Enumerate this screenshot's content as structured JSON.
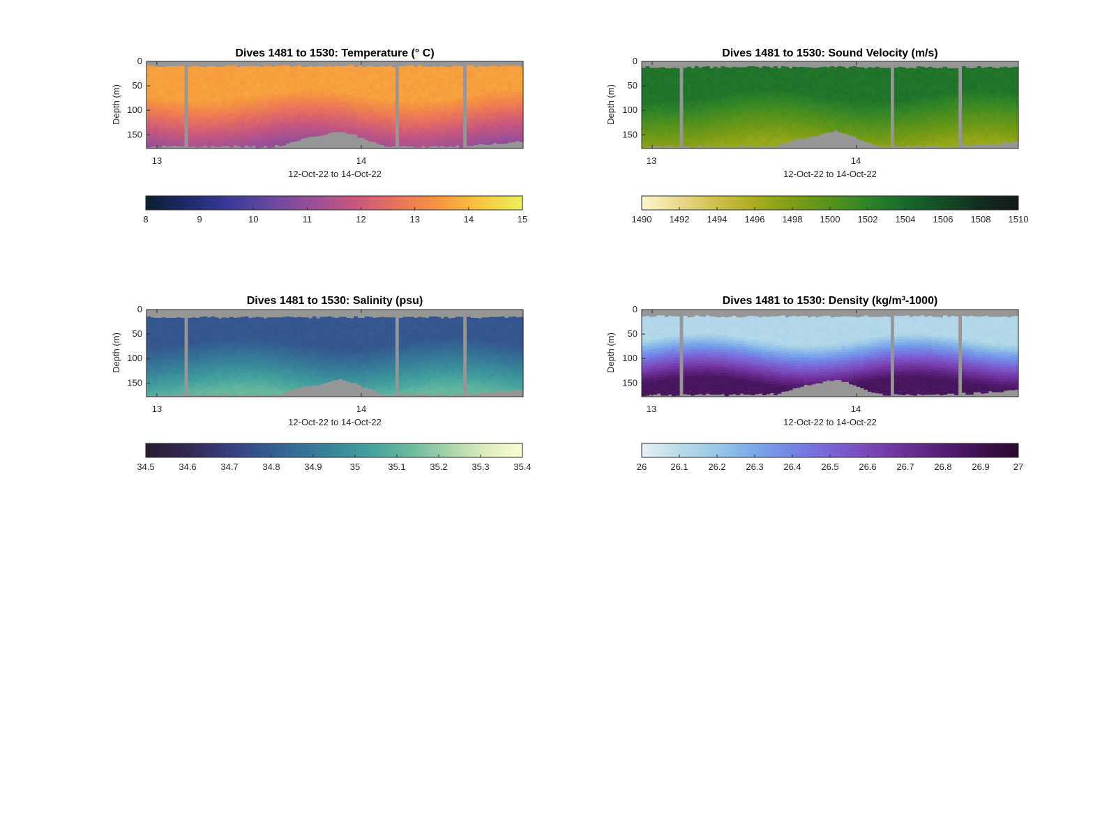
{
  "chart_data": [
    {
      "type": "heatmap",
      "panel": "temperature",
      "title": "Dives 1481 to 1530: Temperature (° C)",
      "xlabel": "12-Oct-22 to 14-Oct-22",
      "ylabel": "Depth (m)",
      "x_ticks": [
        "13",
        "14"
      ],
      "y_ticks": [
        0,
        50,
        100,
        150
      ],
      "xlim": [
        "12-Oct-22 20:00",
        "14-Oct-22 16:00"
      ],
      "ylim": [
        0,
        178
      ],
      "colorbar": {
        "ticks": [
          8,
          9,
          10,
          11,
          12,
          13,
          14,
          15
        ],
        "range": [
          8,
          15
        ],
        "colormap": [
          "#0a1f2e",
          "#1f2a6a",
          "#3b3a9a",
          "#6a48a0",
          "#9a4f96",
          "#c8577e",
          "#e8735c",
          "#f7963f",
          "#f7c640",
          "#eaf25a"
        ]
      },
      "field": {
        "surface": 13.6,
        "deep": 11.0,
        "gradient_start": 70,
        "gradient_end": 175
      },
      "missing_color": "#969696"
    },
    {
      "type": "heatmap",
      "panel": "sound_velocity",
      "title": "Dives 1481 to 1530: Sound Velocity (m/s)",
      "xlabel": "12-Oct-22 to 14-Oct-22",
      "ylabel": "Depth (m)",
      "x_ticks": [
        "13",
        "14"
      ],
      "y_ticks": [
        0,
        50,
        100,
        150
      ],
      "xlim": [
        "12-Oct-22 20:00",
        "14-Oct-22 16:00"
      ],
      "ylim": [
        0,
        178
      ],
      "colorbar": {
        "ticks": [
          1490,
          1492,
          1494,
          1496,
          1498,
          1500,
          1502,
          1504,
          1506,
          1508,
          1510
        ],
        "range": [
          1490,
          1510
        ],
        "colormap": [
          "#fbf6cf",
          "#ead98c",
          "#cfbf4a",
          "#a8ad1e",
          "#7e9e14",
          "#56921c",
          "#2f8427",
          "#17692c",
          "#144c26",
          "#122d1e",
          "#15191a"
        ]
      },
      "field": {
        "surface": 1503.2,
        "deep": 1496.8,
        "gradient_start": 70,
        "gradient_end": 175
      },
      "missing_color": "#969696"
    },
    {
      "type": "heatmap",
      "panel": "salinity",
      "title": "Dives 1481 to 1530: Salinity (psu)",
      "xlabel": "12-Oct-22 to 14-Oct-22",
      "ylabel": "Depth (m)",
      "x_ticks": [
        "13",
        "14"
      ],
      "y_ticks": [
        0,
        50,
        100,
        150
      ],
      "xlim": [
        "12-Oct-22 20:00",
        "14-Oct-22 16:00"
      ],
      "ylim": [
        0,
        178
      ],
      "colorbar": {
        "ticks": [
          34.5,
          34.6,
          34.7,
          34.8,
          34.9,
          35,
          35.1,
          35.2,
          35.3,
          35.4
        ],
        "range": [
          34.5,
          35.4
        ],
        "colormap": [
          "#2a1a2e",
          "#33264f",
          "#363a78",
          "#34548e",
          "#346e95",
          "#38879a",
          "#44a29e",
          "#6ab99e",
          "#a4d3a7",
          "#ddedbc",
          "#fdfbd3"
        ]
      },
      "field": {
        "surface": 34.78,
        "deep": 35.12,
        "gradient_start": 70,
        "gradient_end": 175
      },
      "missing_color": "#969696"
    },
    {
      "type": "heatmap",
      "panel": "density",
      "title": "Dives 1481 to 1530: Density (kg/m³-1000)",
      "xlabel": "12-Oct-22 to 14-Oct-22",
      "ylabel": "Depth (m)",
      "x_ticks": [
        "13",
        "14"
      ],
      "y_ticks": [
        0,
        50,
        100,
        150
      ],
      "xlim": [
        "12-Oct-22 20:00",
        "14-Oct-22 16:00"
      ],
      "ylim": [
        0,
        178
      ],
      "colorbar": {
        "ticks": [
          26,
          26.1,
          26.2,
          26.3,
          26.4,
          26.5,
          26.6,
          26.7,
          26.8,
          26.9,
          27
        ],
        "range": [
          26,
          27
        ],
        "colormap": [
          "#e6f2f4",
          "#b9dbe9",
          "#98c8e8",
          "#7aa8ea",
          "#7485e6",
          "#7a63d6",
          "#7a48b8",
          "#6d2f98",
          "#571d74",
          "#3e1250",
          "#2a0a30"
        ]
      },
      "field": {
        "surface": 26.12,
        "deep": 26.86,
        "gradient_start": 60,
        "gradient_end": 150
      },
      "missing_color": "#969696"
    }
  ],
  "profiles": {
    "columns": 100,
    "gap_dives": [
      10,
      66,
      84
    ],
    "surface_missing_depth": [
      8,
      10,
      14,
      12
    ],
    "bottom_depth": [
      176,
      176,
      175,
      176,
      174,
      176,
      175,
      173,
      176,
      175,
      176,
      175,
      174,
      176,
      175,
      173,
      176,
      174,
      175,
      176,
      175,
      173,
      176,
      174,
      175,
      176,
      173,
      175,
      174,
      176,
      175,
      174,
      176,
      175,
      173,
      174,
      171,
      168,
      166,
      164,
      162,
      160,
      158,
      156,
      155,
      154,
      152,
      150,
      148,
      146,
      145,
      144,
      146,
      148,
      150,
      152,
      155,
      158,
      161,
      164,
      167,
      170,
      172,
      174,
      176,
      176,
      176,
      174,
      173,
      175,
      174,
      176,
      175,
      173,
      175,
      176,
      174,
      175,
      173,
      176,
      175,
      174,
      173,
      176,
      175,
      172,
      174,
      173,
      171,
      170,
      172,
      171,
      169,
      170,
      168,
      169,
      167,
      166,
      165,
      164
    ]
  }
}
